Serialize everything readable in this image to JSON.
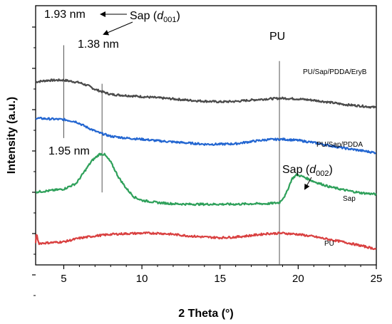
{
  "chart_data": {
    "type": "line",
    "xlabel": "2 Theta (°)",
    "ylabel": "Intensity (a.u.)",
    "xlim": [
      3.2,
      25
    ],
    "x_ticks": [
      5,
      10,
      15,
      20,
      25
    ],
    "x_tick_labels": [
      "5",
      "10",
      "15",
      "20",
      "25"
    ],
    "y_ticks_labeled": false,
    "grid": false,
    "legend": "none",
    "series": [
      {
        "name": "PU/Sap/PDDA/EryB",
        "color": "#4a4a4a",
        "points": [
          [
            3.2,
            0.808
          ],
          [
            4,
            0.815
          ],
          [
            5,
            0.816
          ],
          [
            6,
            0.805
          ],
          [
            6.6,
            0.79
          ],
          [
            7,
            0.775
          ],
          [
            8,
            0.753
          ],
          [
            9,
            0.748
          ],
          [
            10,
            0.743
          ],
          [
            11,
            0.738
          ],
          [
            12,
            0.733
          ],
          [
            13,
            0.727
          ],
          [
            14,
            0.723
          ],
          [
            15,
            0.72
          ],
          [
            16,
            0.722
          ],
          [
            17,
            0.728
          ],
          [
            18,
            0.733
          ],
          [
            19,
            0.736
          ],
          [
            20,
            0.733
          ],
          [
            21,
            0.727
          ],
          [
            22,
            0.718
          ],
          [
            23,
            0.708
          ],
          [
            24,
            0.702
          ],
          [
            25,
            0.695
          ]
        ]
      },
      {
        "name": "PU/Sap/PDDA",
        "color": "#2366d1",
        "points": [
          [
            3.2,
            0.648
          ],
          [
            4,
            0.645
          ],
          [
            5,
            0.642
          ],
          [
            5.8,
            0.632
          ],
          [
            6.5,
            0.607
          ],
          [
            7.2,
            0.585
          ],
          [
            8,
            0.568
          ],
          [
            9,
            0.56
          ],
          [
            10,
            0.555
          ],
          [
            11,
            0.548
          ],
          [
            12,
            0.543
          ],
          [
            13,
            0.538
          ],
          [
            14,
            0.533
          ],
          [
            15,
            0.533
          ],
          [
            16,
            0.535
          ],
          [
            17,
            0.545
          ],
          [
            18,
            0.553
          ],
          [
            19,
            0.555
          ],
          [
            20,
            0.55
          ],
          [
            21,
            0.54
          ],
          [
            22,
            0.527
          ],
          [
            23,
            0.515
          ],
          [
            24,
            0.505
          ],
          [
            25,
            0.495
          ]
        ]
      },
      {
        "name": "Sap",
        "color": "#2ea05a",
        "points": [
          [
            3.2,
            0.322
          ],
          [
            4,
            0.327
          ],
          [
            5,
            0.335
          ],
          [
            5.8,
            0.36
          ],
          [
            6.3,
            0.41
          ],
          [
            6.8,
            0.46
          ],
          [
            7.3,
            0.49
          ],
          [
            7.6,
            0.488
          ],
          [
            8,
            0.455
          ],
          [
            8.5,
            0.388
          ],
          [
            9,
            0.338
          ],
          [
            9.5,
            0.3
          ],
          [
            10,
            0.285
          ],
          [
            11,
            0.275
          ],
          [
            12,
            0.27
          ],
          [
            13,
            0.268
          ],
          [
            14,
            0.268
          ],
          [
            15,
            0.268
          ],
          [
            16,
            0.268
          ],
          [
            17,
            0.27
          ],
          [
            18,
            0.27
          ],
          [
            18.8,
            0.275
          ],
          [
            19.2,
            0.31
          ],
          [
            19.6,
            0.38
          ],
          [
            19.9,
            0.398
          ],
          [
            20.3,
            0.39
          ],
          [
            21,
            0.368
          ],
          [
            22,
            0.345
          ],
          [
            23,
            0.33
          ],
          [
            24,
            0.318
          ],
          [
            25,
            0.312
          ]
        ]
      },
      {
        "name": "PU",
        "color": "#d94040",
        "points": [
          [
            3.2,
            0.092
          ],
          [
            3.25,
            0.14
          ],
          [
            3.4,
            0.095
          ],
          [
            5,
            0.102
          ],
          [
            6,
            0.118
          ],
          [
            7,
            0.128
          ],
          [
            8,
            0.135
          ],
          [
            9,
            0.138
          ],
          [
            10,
            0.14
          ],
          [
            11,
            0.14
          ],
          [
            12,
            0.135
          ],
          [
            13,
            0.128
          ],
          [
            14,
            0.123
          ],
          [
            15,
            0.12
          ],
          [
            16,
            0.123
          ],
          [
            17,
            0.13
          ],
          [
            18,
            0.138
          ],
          [
            19,
            0.14
          ],
          [
            20,
            0.135
          ],
          [
            21,
            0.125
          ],
          [
            22,
            0.112
          ],
          [
            23,
            0.1
          ],
          [
            24,
            0.085
          ],
          [
            25,
            0.07
          ]
        ]
      }
    ],
    "reference_lines": [
      {
        "x": 5.0,
        "y_from": 0.56,
        "y_to": 0.97
      },
      {
        "x": 7.45,
        "y_from": 0.32,
        "y_to": 0.8
      },
      {
        "x": 18.8,
        "y_from": 0.0,
        "y_to": 0.9
      }
    ],
    "annotations": {
      "d193": "1.93 nm",
      "sap_d001_main": "Sap (",
      "sap_d001_italic": "d",
      "sap_d001_sub": "001",
      "sap_d001_close": ")",
      "d138": "1.38 nm",
      "d195": "1.95 nm",
      "pu_peak": "PU",
      "sap_d002_main": "Sap (",
      "sap_d002_italic": "d",
      "sap_d002_sub": "002",
      "sap_d002_close": ")"
    },
    "series_labels": [
      "PU/Sap/PDDA/EryB",
      "PU/Sap/PDDA",
      "Sap",
      "PU"
    ]
  }
}
